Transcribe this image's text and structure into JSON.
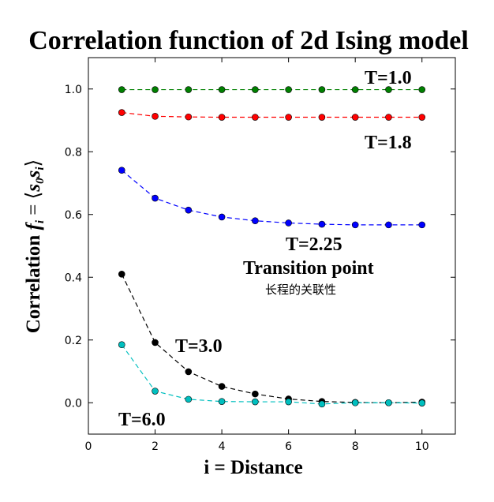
{
  "chart_data": {
    "type": "line",
    "title": "Correlation function of 2d Ising model",
    "xlabel": "i = Distance",
    "ylabel_prefix": "Correlation ",
    "ylabel_math_f": "f",
    "ylabel_math_sub_i": "i",
    "ylabel_math_eq": " = ⟨",
    "ylabel_math_s": "s",
    "ylabel_math_sub_0": "0",
    "ylabel_math_sub_i2": "i",
    "ylabel_math_close": "⟩",
    "xlim": [
      0,
      11
    ],
    "ylim": [
      -0.1,
      1.1
    ],
    "xticks": [
      0,
      2,
      4,
      6,
      8,
      10
    ],
    "yticks": [
      0.0,
      0.2,
      0.4,
      0.6,
      0.8,
      1.0
    ],
    "xtick_labels": [
      "0",
      "2",
      "4",
      "6",
      "8",
      "10"
    ],
    "ytick_labels": [
      "0.0",
      "0.2",
      "0.4",
      "0.6",
      "0.8",
      "1.0"
    ],
    "grid": false,
    "x": [
      1,
      2,
      3,
      4,
      5,
      6,
      7,
      8,
      9,
      10
    ],
    "series": [
      {
        "name": "T=1.0",
        "color": "#008000",
        "values": [
          0.998,
          0.998,
          0.998,
          0.998,
          0.998,
          0.998,
          0.998,
          0.998,
          0.998,
          0.998
        ]
      },
      {
        "name": "T=1.8",
        "color": "#ff0000",
        "values": [
          0.925,
          0.913,
          0.911,
          0.91,
          0.91,
          0.91,
          0.91,
          0.91,
          0.91,
          0.91
        ]
      },
      {
        "name": "T=2.25",
        "color": "#0000ff",
        "values": [
          0.741,
          0.652,
          0.614,
          0.592,
          0.58,
          0.573,
          0.569,
          0.567,
          0.567,
          0.567
        ]
      },
      {
        "name": "T=3.0",
        "color": "#000000",
        "values": [
          0.41,
          0.192,
          0.099,
          0.052,
          0.028,
          0.012,
          0.004,
          0.001,
          0.0,
          0.002
        ]
      },
      {
        "name": "T=6.0",
        "color": "#00bfbf",
        "values": [
          0.185,
          0.037,
          0.011,
          0.004,
          0.003,
          0.003,
          -0.004,
          0.0,
          0.0,
          -0.001
        ]
      }
    ],
    "annotations": [
      {
        "text": "T=1.0",
        "series": "T=1.0"
      },
      {
        "text": "T=1.8",
        "series": "T=1.8"
      },
      {
        "text": "T=2.25",
        "series": "T=2.25"
      },
      {
        "text": "Transition point",
        "series": "T=2.25"
      },
      {
        "text": "长程的关联性",
        "series": "T=2.25"
      },
      {
        "text": "T=3.0",
        "series": "T=3.0"
      },
      {
        "text": "T=6.0",
        "series": "T=6.0"
      }
    ]
  }
}
